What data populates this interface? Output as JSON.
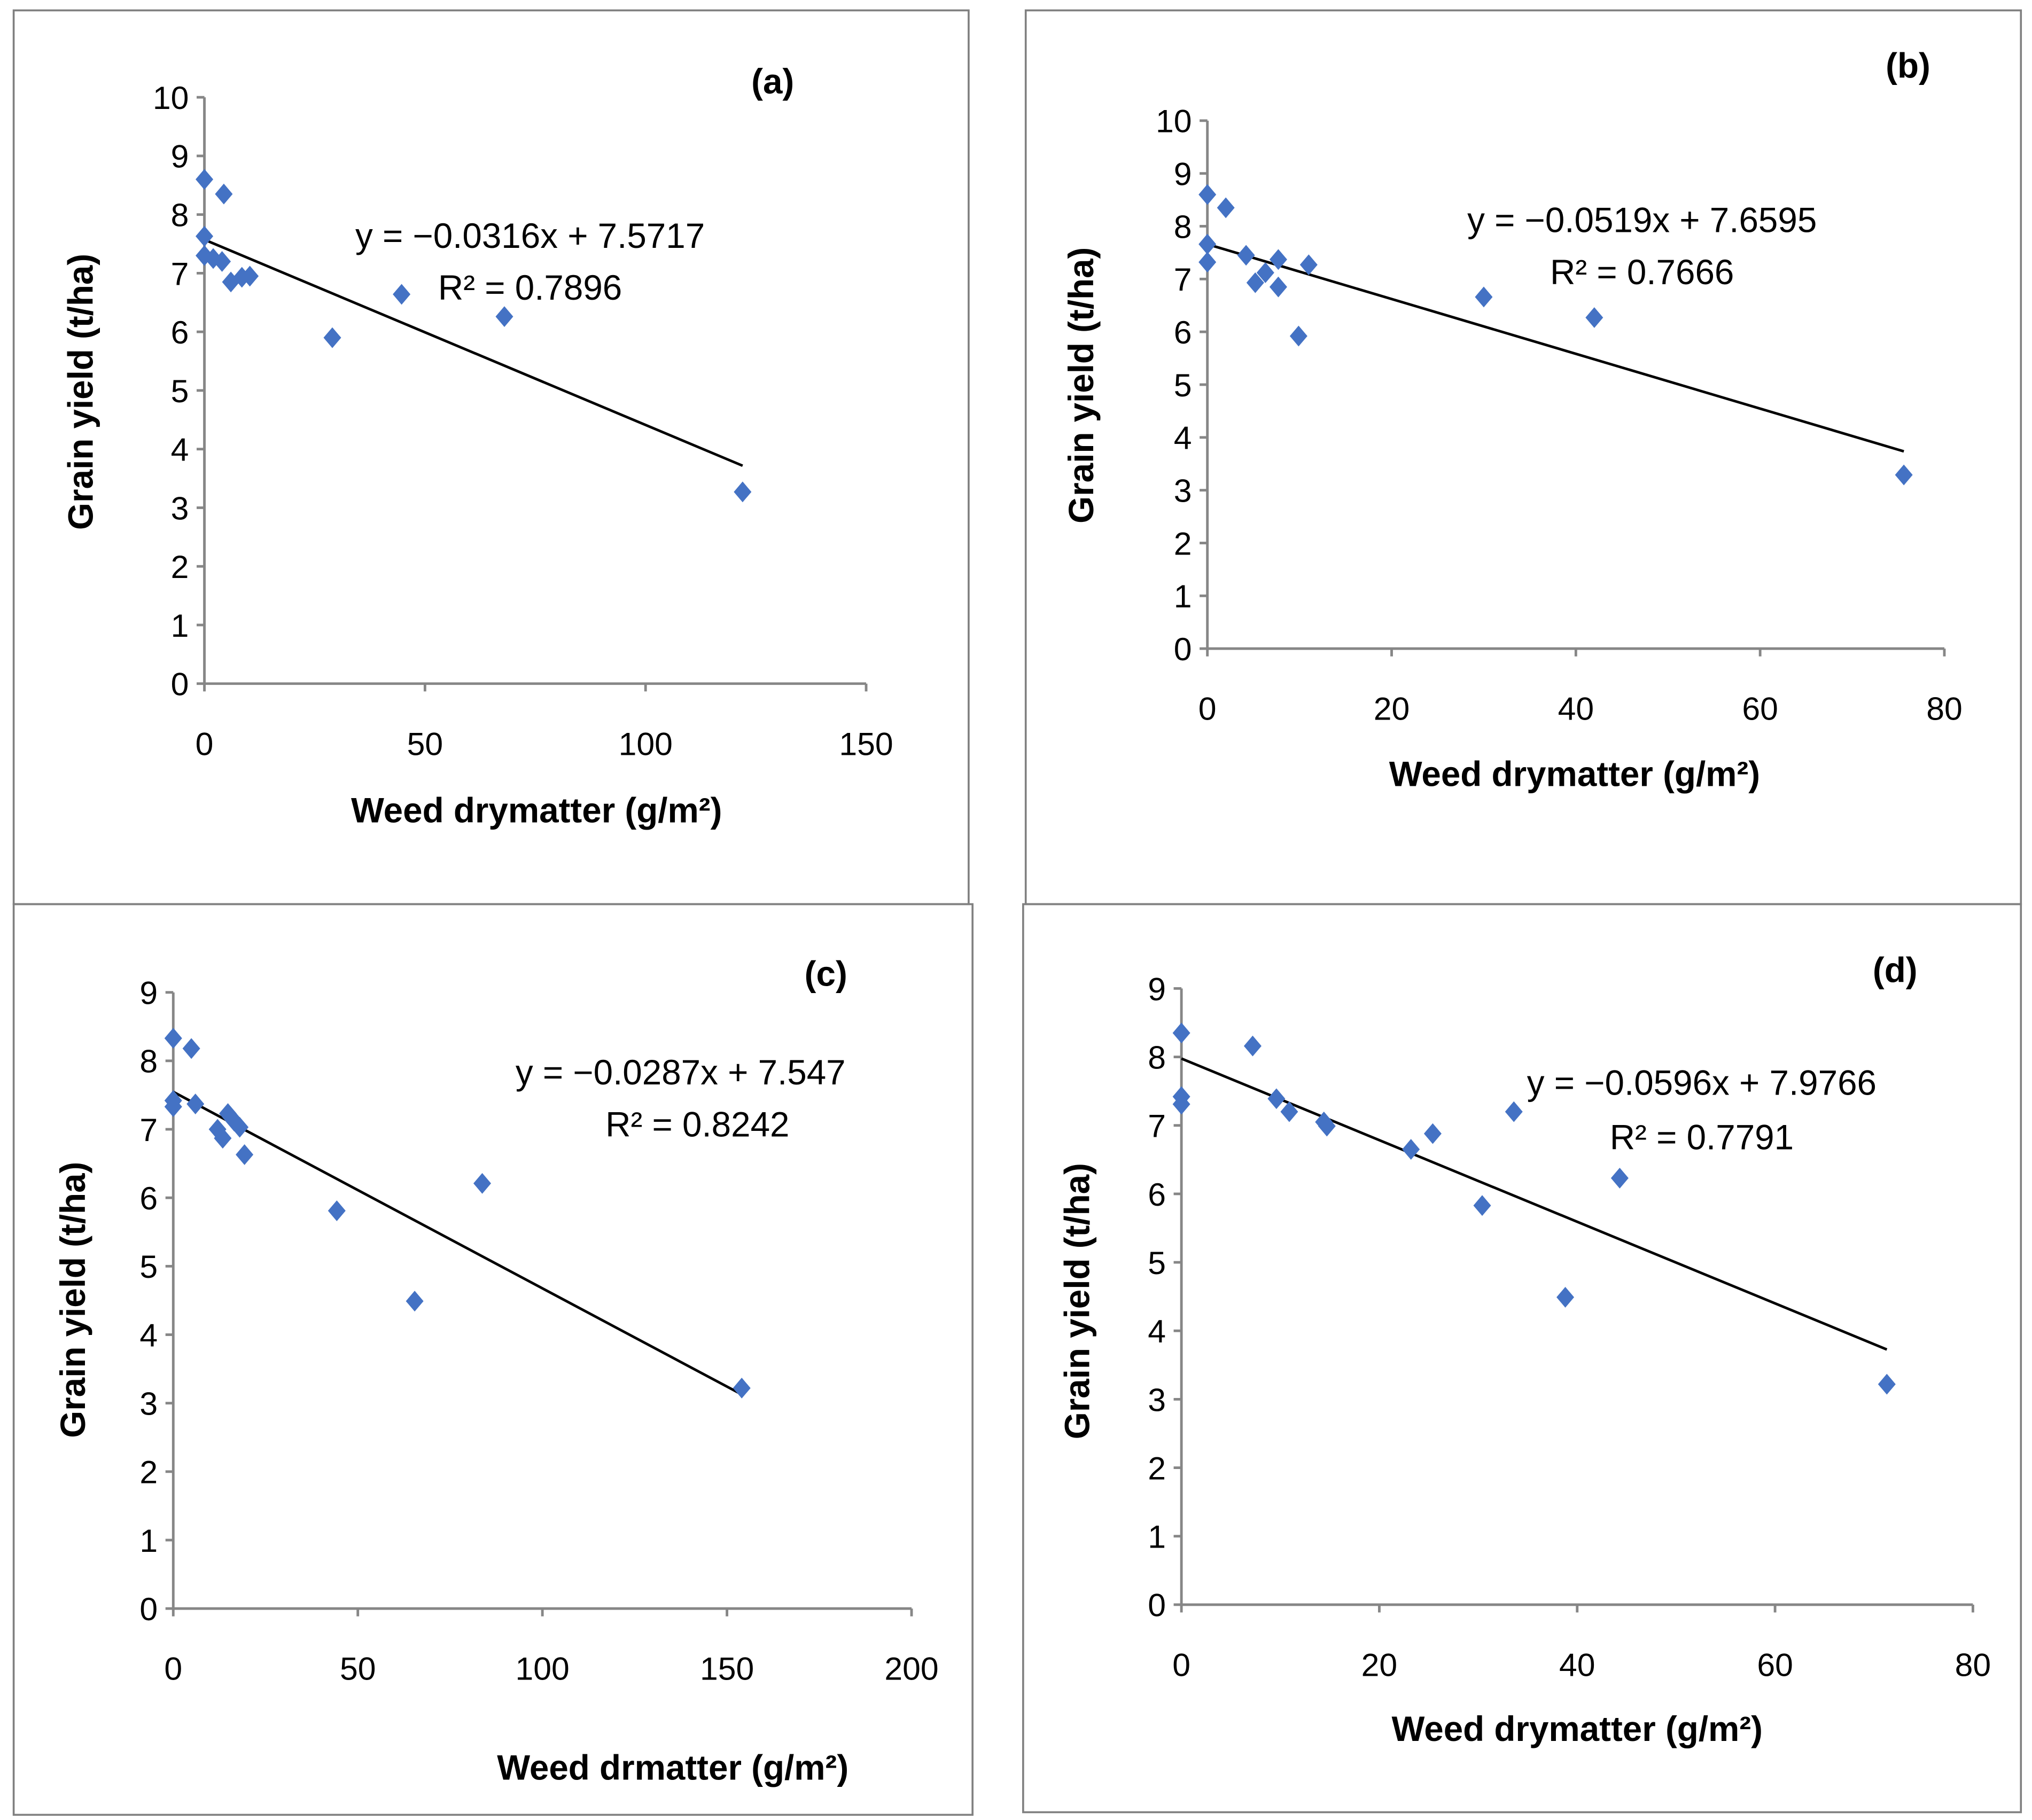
{
  "colors": {
    "marker": "#4472C4",
    "axis": "#868686",
    "trend": "#000000",
    "border": "#808080"
  },
  "chart_data": [
    {
      "type": "scatter",
      "panel_label": "(a)",
      "xlabel": "Weed drymatter (g/m²)",
      "ylabel": "Grain yield (t/ha)",
      "xlim": [
        0,
        150
      ],
      "xticks": [
        0,
        50,
        100,
        150
      ],
      "ylim": [
        0,
        10
      ],
      "yticks": [
        0,
        1,
        2,
        3,
        4,
        5,
        6,
        7,
        8,
        9,
        10
      ],
      "equation": "y = −0.0316x + 7.5717",
      "r2": "R² = 0.7896",
      "trend": {
        "slope": -0.0316,
        "intercept": 7.5717
      },
      "points": [
        [
          0,
          8.6
        ],
        [
          4.4,
          8.35
        ],
        [
          0,
          7.63
        ],
        [
          0,
          7.3
        ],
        [
          2,
          7.25
        ],
        [
          4,
          7.2
        ],
        [
          6,
          6.85
        ],
        [
          8.5,
          6.93
        ],
        [
          10.3,
          6.95
        ],
        [
          29,
          5.9
        ],
        [
          44.7,
          6.64
        ],
        [
          68,
          6.26
        ],
        [
          122,
          3.27
        ]
      ]
    },
    {
      "type": "scatter",
      "panel_label": "(b)",
      "xlabel": "Weed drymatter (g/m²)",
      "ylabel": "Grain yield (t/ha)",
      "xlim": [
        0,
        80
      ],
      "xticks": [
        0,
        20,
        40,
        60,
        80
      ],
      "ylim": [
        0,
        10
      ],
      "yticks": [
        0,
        1,
        2,
        3,
        4,
        5,
        6,
        7,
        8,
        9,
        10
      ],
      "equation": "y = −0.0519x + 7.6595",
      "r2": "R² = 0.7666",
      "trend": {
        "slope": -0.0519,
        "intercept": 7.6595
      },
      "points": [
        [
          0,
          8.6
        ],
        [
          2,
          8.35
        ],
        [
          0,
          7.66
        ],
        [
          0,
          7.32
        ],
        [
          4.2,
          7.45
        ],
        [
          5.2,
          6.93
        ],
        [
          6.3,
          7.12
        ],
        [
          7.7,
          7.37
        ],
        [
          7.7,
          6.85
        ],
        [
          11,
          7.27
        ],
        [
          9.9,
          5.92
        ],
        [
          30,
          6.66
        ],
        [
          42,
          6.27
        ],
        [
          75.6,
          3.29
        ]
      ]
    },
    {
      "type": "scatter",
      "panel_label": "(c)",
      "xlabel": "Weed drmatter (g/m²)",
      "ylabel": "Grain yield (t/ha)",
      "xlim": [
        0,
        200
      ],
      "xticks": [
        0,
        50,
        100,
        150,
        200
      ],
      "ylim": [
        0,
        9
      ],
      "yticks": [
        0,
        1,
        2,
        3,
        4,
        5,
        6,
        7,
        8,
        9
      ],
      "equation": "y = −0.0287x + 7.547",
      "r2": "R² = 0.8242",
      "trend": {
        "slope": -0.0287,
        "intercept": 7.547
      },
      "points": [
        [
          0,
          8.33
        ],
        [
          4.9,
          8.18
        ],
        [
          0,
          7.42
        ],
        [
          0,
          7.33
        ],
        [
          6,
          7.37
        ],
        [
          12,
          7.0
        ],
        [
          13.4,
          6.87
        ],
        [
          14.8,
          7.23
        ],
        [
          16.5,
          7.12
        ],
        [
          18,
          7.03
        ],
        [
          19.3,
          6.63
        ],
        [
          44.3,
          5.81
        ],
        [
          65.4,
          4.49
        ],
        [
          83.7,
          6.21
        ],
        [
          154,
          3.22
        ]
      ]
    },
    {
      "type": "scatter",
      "panel_label": "(d)",
      "xlabel": "Weed drymatter (g/m²)",
      "ylabel": "Grain yield (t/ha)",
      "xlim": [
        0,
        80
      ],
      "xticks": [
        0,
        20,
        40,
        60,
        80
      ],
      "ylim": [
        0,
        9
      ],
      "yticks": [
        0,
        1,
        2,
        3,
        4,
        5,
        6,
        7,
        8,
        9
      ],
      "equation": "y = −0.0596x + 7.9766",
      "r2": "R² = 0.7791",
      "trend": {
        "slope": -0.0596,
        "intercept": 7.9766
      },
      "points": [
        [
          0,
          8.35
        ],
        [
          7.2,
          8.16
        ],
        [
          0,
          7.42
        ],
        [
          0,
          7.31
        ],
        [
          9.6,
          7.39
        ],
        [
          10.9,
          7.2
        ],
        [
          14.4,
          7.05
        ],
        [
          14.7,
          6.99
        ],
        [
          23.2,
          6.65
        ],
        [
          25.4,
          6.88
        ],
        [
          30.4,
          5.83
        ],
        [
          33.6,
          7.2
        ],
        [
          38.8,
          4.49
        ],
        [
          44.3,
          6.23
        ],
        [
          71.3,
          3.22
        ]
      ]
    }
  ]
}
